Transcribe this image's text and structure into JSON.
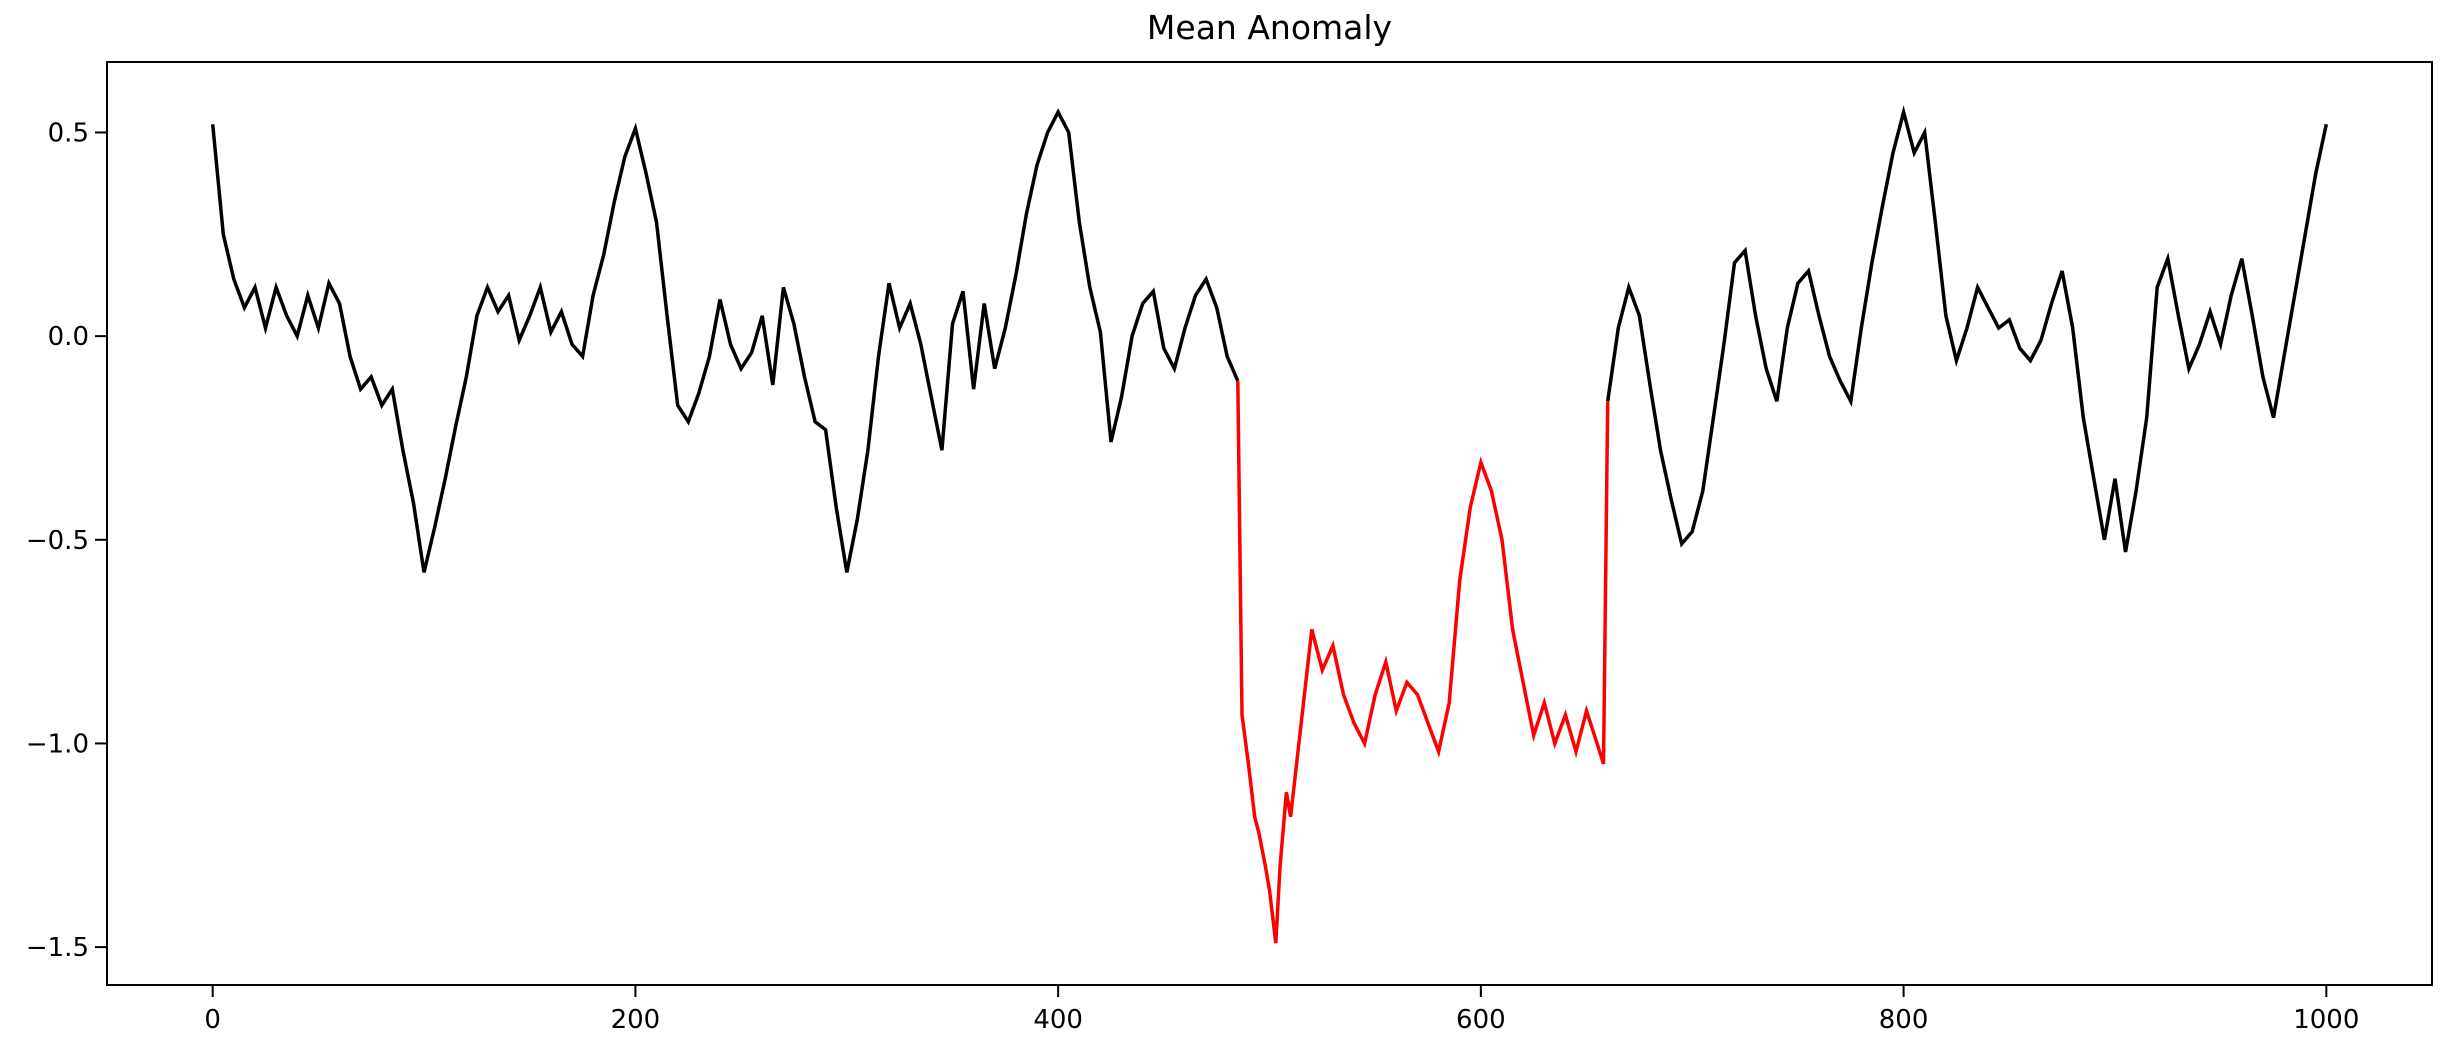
{
  "title": "Mean Anomaly",
  "chart_data": {
    "type": "line",
    "title": "Mean Anomaly",
    "xlabel": "",
    "ylabel": "",
    "grid": false,
    "legend": "none",
    "background": "#ffffff",
    "xlim": [
      -50,
      1050
    ],
    "ylim": [
      -1.593,
      0.673
    ],
    "x_ticks": [
      0,
      200,
      400,
      600,
      800,
      1000
    ],
    "x_tick_labels": [
      "0",
      "200",
      "400",
      "600",
      "800",
      "1000"
    ],
    "y_ticks": [
      0.5,
      0.0,
      -0.5,
      -1.0,
      -1.5
    ],
    "y_tick_labels": [
      "0.5",
      "0.0",
      "−0.5",
      "−1.0",
      "−1.5"
    ],
    "colors": {
      "normal": "#000000",
      "anomaly": "#ff0000"
    },
    "anomaly_x_range": [
      485,
      660
    ],
    "series": [
      {
        "name": "normal-pre-anomaly",
        "color": "#000000",
        "points": [
          [
            0,
            0.52
          ],
          [
            5,
            0.25
          ],
          [
            10,
            0.14
          ],
          [
            15,
            0.07
          ],
          [
            20,
            0.12
          ],
          [
            25,
            0.02
          ],
          [
            30,
            0.12
          ],
          [
            35,
            0.05
          ],
          [
            40,
            0.0
          ],
          [
            45,
            0.1
          ],
          [
            50,
            0.02
          ],
          [
            55,
            0.13
          ],
          [
            60,
            0.08
          ],
          [
            65,
            -0.05
          ],
          [
            70,
            -0.13
          ],
          [
            75,
            -0.1
          ],
          [
            80,
            -0.17
          ],
          [
            85,
            -0.13
          ],
          [
            90,
            -0.28
          ],
          [
            95,
            -0.41
          ],
          [
            100,
            -0.58
          ],
          [
            105,
            -0.47
          ],
          [
            110,
            -0.35
          ],
          [
            115,
            -0.22
          ],
          [
            120,
            -0.1
          ],
          [
            125,
            0.05
          ],
          [
            130,
            0.12
          ],
          [
            135,
            0.06
          ],
          [
            140,
            0.1
          ],
          [
            145,
            -0.01
          ],
          [
            150,
            0.05
          ],
          [
            155,
            0.12
          ],
          [
            160,
            0.01
          ],
          [
            165,
            0.06
          ],
          [
            170,
            -0.02
          ],
          [
            175,
            -0.05
          ],
          [
            180,
            0.1
          ],
          [
            185,
            0.2
          ],
          [
            190,
            0.33
          ],
          [
            195,
            0.44
          ],
          [
            200,
            0.51
          ],
          [
            205,
            0.4
          ],
          [
            210,
            0.28
          ],
          [
            215,
            0.05
          ],
          [
            220,
            -0.17
          ],
          [
            225,
            -0.21
          ],
          [
            230,
            -0.14
          ],
          [
            235,
            -0.05
          ],
          [
            240,
            0.09
          ],
          [
            245,
            -0.02
          ],
          [
            250,
            -0.08
          ],
          [
            255,
            -0.04
          ],
          [
            260,
            0.05
          ],
          [
            265,
            -0.12
          ],
          [
            270,
            0.12
          ],
          [
            275,
            0.03
          ],
          [
            280,
            -0.1
          ],
          [
            285,
            -0.21
          ],
          [
            290,
            -0.23
          ],
          [
            295,
            -0.42
          ],
          [
            300,
            -0.58
          ],
          [
            305,
            -0.45
          ],
          [
            310,
            -0.28
          ],
          [
            315,
            -0.05
          ],
          [
            320,
            0.13
          ],
          [
            325,
            0.02
          ],
          [
            330,
            0.08
          ],
          [
            335,
            -0.02
          ],
          [
            340,
            -0.15
          ],
          [
            345,
            -0.28
          ],
          [
            350,
            0.03
          ],
          [
            355,
            0.11
          ],
          [
            360,
            -0.13
          ],
          [
            365,
            0.08
          ],
          [
            370,
            -0.08
          ],
          [
            375,
            0.02
          ],
          [
            380,
            0.15
          ],
          [
            385,
            0.3
          ],
          [
            390,
            0.42
          ],
          [
            395,
            0.5
          ],
          [
            400,
            0.55
          ],
          [
            405,
            0.5
          ],
          [
            410,
            0.28
          ],
          [
            415,
            0.12
          ],
          [
            420,
            0.01
          ],
          [
            425,
            -0.26
          ],
          [
            430,
            -0.15
          ],
          [
            435,
            0.0
          ],
          [
            440,
            0.08
          ],
          [
            445,
            0.11
          ],
          [
            450,
            -0.03
          ],
          [
            455,
            -0.08
          ],
          [
            460,
            0.02
          ],
          [
            465,
            0.1
          ],
          [
            470,
            0.14
          ],
          [
            475,
            0.07
          ],
          [
            480,
            -0.05
          ],
          [
            485,
            -0.11
          ]
        ]
      },
      {
        "name": "anomaly-segment",
        "color": "#ff0000",
        "points": [
          [
            485,
            -0.11
          ],
          [
            487,
            -0.93
          ],
          [
            490,
            -1.05
          ],
          [
            493,
            -1.18
          ],
          [
            495,
            -1.22
          ],
          [
            498,
            -1.3
          ],
          [
            500,
            -1.36
          ],
          [
            503,
            -1.49
          ],
          [
            505,
            -1.3
          ],
          [
            508,
            -1.12
          ],
          [
            510,
            -1.18
          ],
          [
            515,
            -0.95
          ],
          [
            520,
            -0.72
          ],
          [
            525,
            -0.82
          ],
          [
            530,
            -0.76
          ],
          [
            535,
            -0.88
          ],
          [
            540,
            -0.95
          ],
          [
            545,
            -1.0
          ],
          [
            550,
            -0.88
          ],
          [
            555,
            -0.8
          ],
          [
            560,
            -0.92
          ],
          [
            565,
            -0.85
          ],
          [
            570,
            -0.88
          ],
          [
            575,
            -0.95
          ],
          [
            580,
            -1.02
          ],
          [
            585,
            -0.9
          ],
          [
            590,
            -0.6
          ],
          [
            595,
            -0.42
          ],
          [
            600,
            -0.31
          ],
          [
            605,
            -0.38
          ],
          [
            610,
            -0.5
          ],
          [
            615,
            -0.72
          ],
          [
            620,
            -0.85
          ],
          [
            625,
            -0.98
          ],
          [
            630,
            -0.9
          ],
          [
            635,
            -1.0
          ],
          [
            640,
            -0.93
          ],
          [
            645,
            -1.02
          ],
          [
            650,
            -0.92
          ],
          [
            655,
            -1.0
          ],
          [
            658,
            -1.05
          ],
          [
            660,
            -0.16
          ]
        ]
      },
      {
        "name": "normal-post-anomaly",
        "color": "#000000",
        "points": [
          [
            660,
            -0.16
          ],
          [
            665,
            0.02
          ],
          [
            670,
            0.12
          ],
          [
            675,
            0.05
          ],
          [
            680,
            -0.12
          ],
          [
            685,
            -0.28
          ],
          [
            690,
            -0.4
          ],
          [
            695,
            -0.51
          ],
          [
            700,
            -0.48
          ],
          [
            705,
            -0.38
          ],
          [
            710,
            -0.2
          ],
          [
            715,
            -0.02
          ],
          [
            720,
            0.18
          ],
          [
            725,
            0.21
          ],
          [
            730,
            0.05
          ],
          [
            735,
            -0.08
          ],
          [
            740,
            -0.16
          ],
          [
            745,
            0.02
          ],
          [
            750,
            0.13
          ],
          [
            755,
            0.16
          ],
          [
            760,
            0.05
          ],
          [
            765,
            -0.05
          ],
          [
            770,
            -0.11
          ],
          [
            775,
            -0.16
          ],
          [
            780,
            0.02
          ],
          [
            785,
            0.18
          ],
          [
            790,
            0.32
          ],
          [
            795,
            0.45
          ],
          [
            800,
            0.55
          ],
          [
            805,
            0.45
          ],
          [
            810,
            0.5
          ],
          [
            815,
            0.28
          ],
          [
            820,
            0.05
          ],
          [
            825,
            -0.06
          ],
          [
            830,
            0.02
          ],
          [
            835,
            0.12
          ],
          [
            840,
            0.07
          ],
          [
            845,
            0.02
          ],
          [
            850,
            0.04
          ],
          [
            855,
            -0.03
          ],
          [
            860,
            -0.06
          ],
          [
            865,
            -0.01
          ],
          [
            870,
            0.08
          ],
          [
            875,
            0.16
          ],
          [
            880,
            0.02
          ],
          [
            885,
            -0.2
          ],
          [
            890,
            -0.35
          ],
          [
            895,
            -0.5
          ],
          [
            900,
            -0.35
          ],
          [
            905,
            -0.53
          ],
          [
            910,
            -0.38
          ],
          [
            915,
            -0.2
          ],
          [
            920,
            0.12
          ],
          [
            925,
            0.19
          ],
          [
            930,
            0.05
          ],
          [
            935,
            -0.08
          ],
          [
            940,
            -0.02
          ],
          [
            945,
            0.06
          ],
          [
            950,
            -0.02
          ],
          [
            955,
            0.1
          ],
          [
            960,
            0.19
          ],
          [
            965,
            0.05
          ],
          [
            970,
            -0.1
          ],
          [
            975,
            -0.2
          ],
          [
            980,
            -0.05
          ],
          [
            985,
            0.1
          ],
          [
            990,
            0.25
          ],
          [
            995,
            0.4
          ],
          [
            1000,
            0.52
          ]
        ]
      }
    ]
  }
}
